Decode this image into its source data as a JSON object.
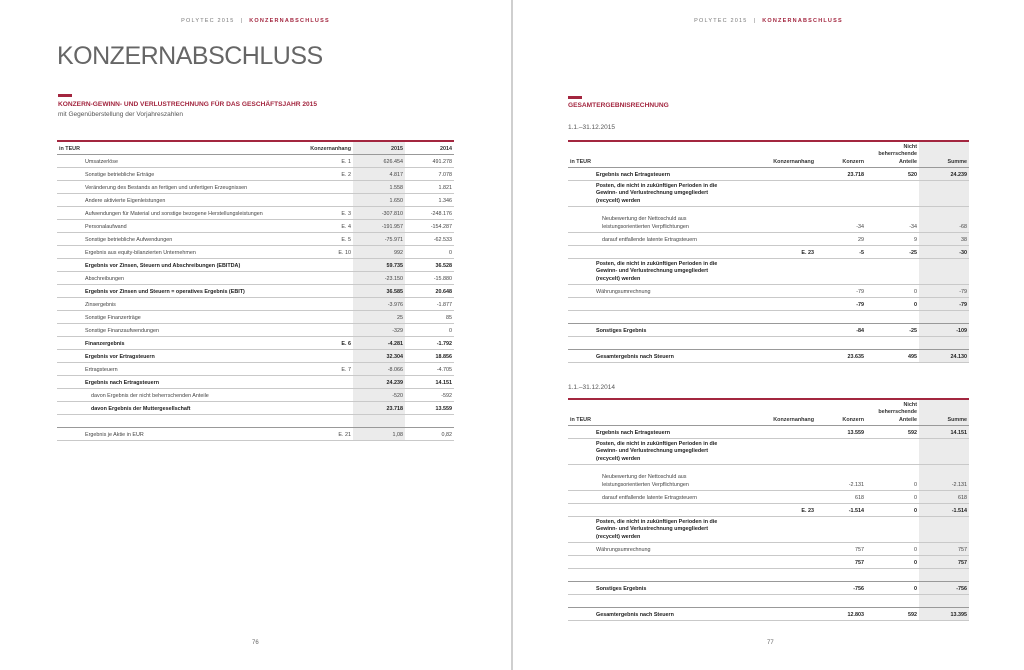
{
  "left_page": {
    "running_head": {
      "brand": "POLYTEC 2015",
      "separator": "|",
      "section": "KONZERNABSCHLUSS"
    },
    "title": "KONZERNABSCHLUSS",
    "section_title": "KONZERN-GEWINN- UND VERLUSTRECHNUNG FÜR DAS GESCHÄFTSJAHR 2015",
    "subtitle": "mit Gegenüberstellung der Vorjahreszahlen",
    "table": {
      "headers": [
        "in TEUR",
        "Konzernanhang",
        "2015",
        "2014"
      ],
      "rows": [
        {
          "label": "Umsatzerlöse",
          "note": "E. 1",
          "v1": "626.454",
          "v2": "491.278",
          "type": "normal"
        },
        {
          "label": "Sonstige betriebliche Erträge",
          "note": "E. 2",
          "v1": "4.817",
          "v2": "7.078",
          "type": "normal"
        },
        {
          "label": "Veränderung des Bestands an fertigen und unfertigen Erzeugnissen",
          "note": "",
          "v1": "1.558",
          "v2": "1.821",
          "type": "normal"
        },
        {
          "label": "Andere aktivierte Eigenleistungen",
          "note": "",
          "v1": "1.650",
          "v2": "1.346",
          "type": "normal"
        },
        {
          "label": "Aufwendungen für Material und sonstige bezogene Herstellungsleistungen",
          "note": "E. 3",
          "v1": "-307.810",
          "v2": "-248.176",
          "type": "normal"
        },
        {
          "label": "Personalaufwand",
          "note": "E. 4",
          "v1": "-191.957",
          "v2": "-154.287",
          "type": "normal"
        },
        {
          "label": "Sonstige betriebliche Aufwendungen",
          "note": "E. 5",
          "v1": "-75.971",
          "v2": "-62.533",
          "type": "normal"
        },
        {
          "label": "Ergebnis aus equity-bilanzierten Unternehmen",
          "note": "E. 10",
          "v1": "992",
          "v2": "0",
          "type": "normal"
        },
        {
          "label": "Ergebnis vor Zinsen, Steuern und Abschreibungen (EBITDA)",
          "note": "",
          "v1": "59.735",
          "v2": "36.528",
          "type": "bold"
        },
        {
          "label": "Abschreibungen",
          "note": "",
          "v1": "-23.150",
          "v2": "-15.880",
          "type": "normal"
        },
        {
          "label": "Ergebnis vor Zinsen und Steuern = operatives Ergebnis (EBIT)",
          "note": "",
          "v1": "36.585",
          "v2": "20.648",
          "type": "bold"
        },
        {
          "label": "Zinsergebnis",
          "note": "",
          "v1": "-3.976",
          "v2": "-1.877",
          "type": "normal"
        },
        {
          "label": "Sonstige Finanzerträge",
          "note": "",
          "v1": "25",
          "v2": "85",
          "type": "normal"
        },
        {
          "label": "Sonstige Finanzaufwendungen",
          "note": "",
          "v1": "-329",
          "v2": "0",
          "type": "normal"
        },
        {
          "label": "Finanzergebnis",
          "note": "E. 6",
          "v1": "-4.281",
          "v2": "-1.792",
          "type": "bold"
        },
        {
          "label": "Ergebnis vor Ertragsteuern",
          "note": "",
          "v1": "32.304",
          "v2": "18.856",
          "type": "bold"
        },
        {
          "label": "Ertragsteuern",
          "note": "E. 7",
          "v1": "-8.066",
          "v2": "-4.705",
          "type": "normal"
        },
        {
          "label": "Ergebnis nach Ertragsteuern",
          "note": "",
          "v1": "24.239",
          "v2": "14.151",
          "type": "bold"
        },
        {
          "label": "davon Ergebnis der nicht beherrschenden Anteile",
          "note": "",
          "v1": "-520",
          "v2": "-592",
          "type": "indent"
        },
        {
          "label": "davon Ergebnis der Muttergesellschaft",
          "note": "",
          "v1": "23.718",
          "v2": "13.559",
          "type": "bold-indent"
        },
        {
          "label": "",
          "note": "",
          "v1": "",
          "v2": "",
          "type": "blank"
        },
        {
          "label": "Ergebnis je Aktie in EUR",
          "note": "E. 21",
          "v1": "1,08",
          "v2": "0,82",
          "type": "normal"
        }
      ]
    },
    "page_number": "76"
  },
  "right_page": {
    "running_head": {
      "brand": "POLYTEC 2015",
      "separator": "|",
      "section": "KONZERNABSCHLUSS"
    },
    "section_title": "GESAMTERGEBNISRECHNUNG",
    "tables": [
      {
        "period": "1.1.–31.12.2015",
        "headers": [
          "in TEUR",
          "Konzernanhang",
          "Konzern",
          "Nicht beherrschende Anteile",
          "Summe"
        ],
        "rows": [
          {
            "label": "Ergebnis nach Ertragsteuern",
            "note": "",
            "v1": "23.718",
            "v2": "520",
            "v3": "24.239",
            "type": "bold"
          },
          {
            "label": "Posten, die nicht in zukünftigen Perioden in die Gewinn- und Verlustrechnung umgegliedert (recycelt) werden",
            "note": "",
            "v1": "",
            "v2": "",
            "v3": "",
            "type": "bold"
          },
          {
            "label": "Neubewertung der Nettoschuld aus leistungsorientierten Verpflichtungen",
            "note": "",
            "v1": "-34",
            "v2": "-34",
            "v3": "-68",
            "type": "indent"
          },
          {
            "label": "darauf entfallende latente Ertragsteuern",
            "note": "",
            "v1": "29",
            "v2": "9",
            "v3": "38",
            "type": "indent"
          },
          {
            "label": "",
            "note": "E. 23",
            "v1": "-5",
            "v2": "-25",
            "v3": "-30",
            "type": "bold"
          },
          {
            "label": "Posten, die nicht in zukünftigen Perioden in die Gewinn- und Verlustrechnung umgegliedert (recycelt) werden",
            "note": "",
            "v1": "",
            "v2": "",
            "v3": "",
            "type": "bold"
          },
          {
            "label": "Währungsumrechnung",
            "note": "",
            "v1": "-79",
            "v2": "0",
            "v3": "-79",
            "type": "normal"
          },
          {
            "label": "",
            "note": "",
            "v1": "-79",
            "v2": "0",
            "v3": "-79",
            "type": "bold"
          },
          {
            "label": "",
            "note": "",
            "v1": "",
            "v2": "",
            "v3": "",
            "type": "blank"
          },
          {
            "label": "Sonstiges Ergebnis",
            "note": "",
            "v1": "-84",
            "v2": "-25",
            "v3": "-109",
            "type": "bold"
          },
          {
            "label": "",
            "note": "",
            "v1": "",
            "v2": "",
            "v3": "",
            "type": "blank"
          },
          {
            "label": "Gesamtergebnis nach Steuern",
            "note": "",
            "v1": "23.635",
            "v2": "495",
            "v3": "24.130",
            "type": "bold"
          }
        ]
      },
      {
        "period": "1.1.–31.12.2014",
        "headers": [
          "in TEUR",
          "Konzernanhang",
          "Konzern",
          "Nicht beherrschende Anteile",
          "Summe"
        ],
        "rows": [
          {
            "label": "Ergebnis nach Ertragsteuern",
            "note": "",
            "v1": "13.559",
            "v2": "592",
            "v3": "14.151",
            "type": "bold"
          },
          {
            "label": "Posten, die nicht in zukünftigen Perioden in die Gewinn- und Verlustrechnung umgegliedert (recycelt) werden",
            "note": "",
            "v1": "",
            "v2": "",
            "v3": "",
            "type": "bold"
          },
          {
            "label": "Neubewertung der Nettoschuld aus leistungsorientierten Verpflichtungen",
            "note": "",
            "v1": "-2.131",
            "v2": "0",
            "v3": "-2.131",
            "type": "indent"
          },
          {
            "label": "darauf entfallende latente Ertragsteuern",
            "note": "",
            "v1": "618",
            "v2": "0",
            "v3": "618",
            "type": "indent"
          },
          {
            "label": "",
            "note": "E. 23",
            "v1": "-1.514",
            "v2": "0",
            "v3": "-1.514",
            "type": "bold"
          },
          {
            "label": "Posten, die nicht in zukünftigen Perioden in die Gewinn- und Verlustrechnung umgegliedert (recycelt) werden",
            "note": "",
            "v1": "",
            "v2": "",
            "v3": "",
            "type": "bold"
          },
          {
            "label": "Währungsumrechnung",
            "note": "",
            "v1": "757",
            "v2": "0",
            "v3": "757",
            "type": "normal"
          },
          {
            "label": "",
            "note": "",
            "v1": "757",
            "v2": "0",
            "v3": "757",
            "type": "bold"
          },
          {
            "label": "",
            "note": "",
            "v1": "",
            "v2": "",
            "v3": "",
            "type": "blank"
          },
          {
            "label": "Sonstiges Ergebnis",
            "note": "",
            "v1": "-756",
            "v2": "0",
            "v3": "-756",
            "type": "bold"
          },
          {
            "label": "",
            "note": "",
            "v1": "",
            "v2": "",
            "v3": "",
            "type": "blank"
          },
          {
            "label": "Gesamtergebnis nach Steuern",
            "note": "",
            "v1": "12.803",
            "v2": "592",
            "v3": "13.395",
            "type": "bold"
          }
        ]
      }
    ],
    "page_number": "77"
  },
  "colors": {
    "accent": "#a3263f",
    "shade": "#ebebeb",
    "title": "#666666"
  }
}
